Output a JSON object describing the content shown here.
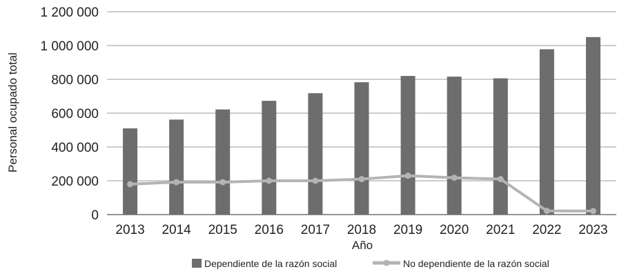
{
  "chart_data": {
    "type": "bar",
    "title": "",
    "xlabel": "Año",
    "ylabel": "Personal ocupado total",
    "ylim": [
      0,
      1200000
    ],
    "yticks": [
      0,
      200000,
      400000,
      600000,
      800000,
      1000000,
      1200000
    ],
    "ytick_labels": [
      "0",
      "200 000",
      "400 000",
      "600 000",
      "800 000",
      "1 000 000",
      "1 200 000"
    ],
    "grid": "horizontal",
    "legend_position": "bottom",
    "categories": [
      "2013",
      "2014",
      "2015",
      "2016",
      "2017",
      "2018",
      "2019",
      "2020",
      "2021",
      "2022",
      "2023"
    ],
    "series": [
      {
        "name": "Dependiente de la razón social",
        "kind": "bar",
        "color": "#6d6d6d",
        "values": [
          510000,
          562000,
          622000,
          673000,
          718000,
          783000,
          820000,
          816000,
          806000,
          978000,
          1050000
        ]
      },
      {
        "name": "No dependiente de la razón social",
        "kind": "line",
        "color": "#b4b4b4",
        "values": [
          180000,
          192000,
          192000,
          200000,
          200000,
          210000,
          230000,
          218000,
          210000,
          22000,
          21000
        ]
      }
    ]
  }
}
